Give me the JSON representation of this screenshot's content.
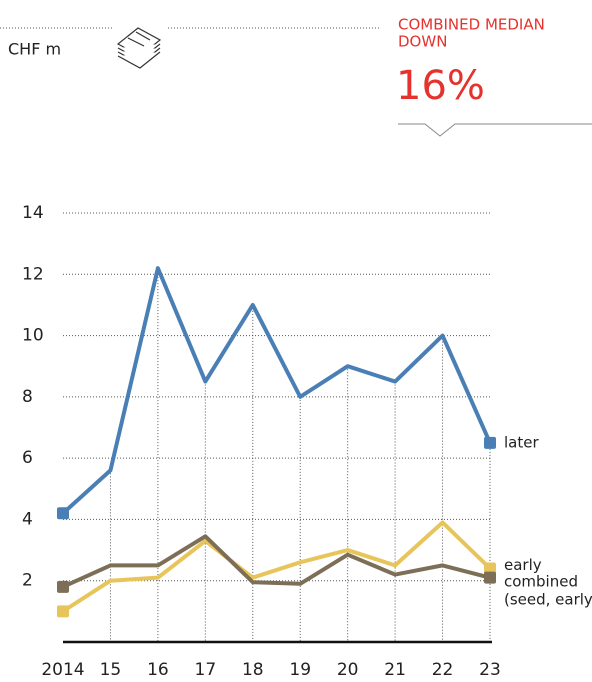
{
  "chart_data": {
    "type": "line",
    "unit_label": "CHF m",
    "headline": [
      "COMBINED MEDIAN",
      "DOWN"
    ],
    "headline_value": "16%",
    "categories": [
      "2014",
      "15",
      "16",
      "17",
      "18",
      "19",
      "20",
      "21",
      "22",
      "23"
    ],
    "series": [
      {
        "name": "later",
        "color": "#4a7fb5",
        "values": [
          4.2,
          5.6,
          12.2,
          8.5,
          11.0,
          8.0,
          9.0,
          8.5,
          10.0,
          6.5
        ]
      },
      {
        "name": "early",
        "color": "#e8c55a",
        "values": [
          1.0,
          2.0,
          2.1,
          3.3,
          2.1,
          2.6,
          3.0,
          2.5,
          3.9,
          2.4
        ]
      },
      {
        "name": "combined (seed, early)",
        "color": "#7d6e58",
        "values": [
          1.8,
          2.5,
          2.5,
          3.45,
          1.95,
          1.9,
          2.85,
          2.2,
          2.5,
          2.1
        ]
      }
    ],
    "ylim": [
      0,
      14
    ],
    "yticks": [
      2,
      4,
      6,
      8,
      10,
      12,
      14
    ],
    "grid": true
  }
}
